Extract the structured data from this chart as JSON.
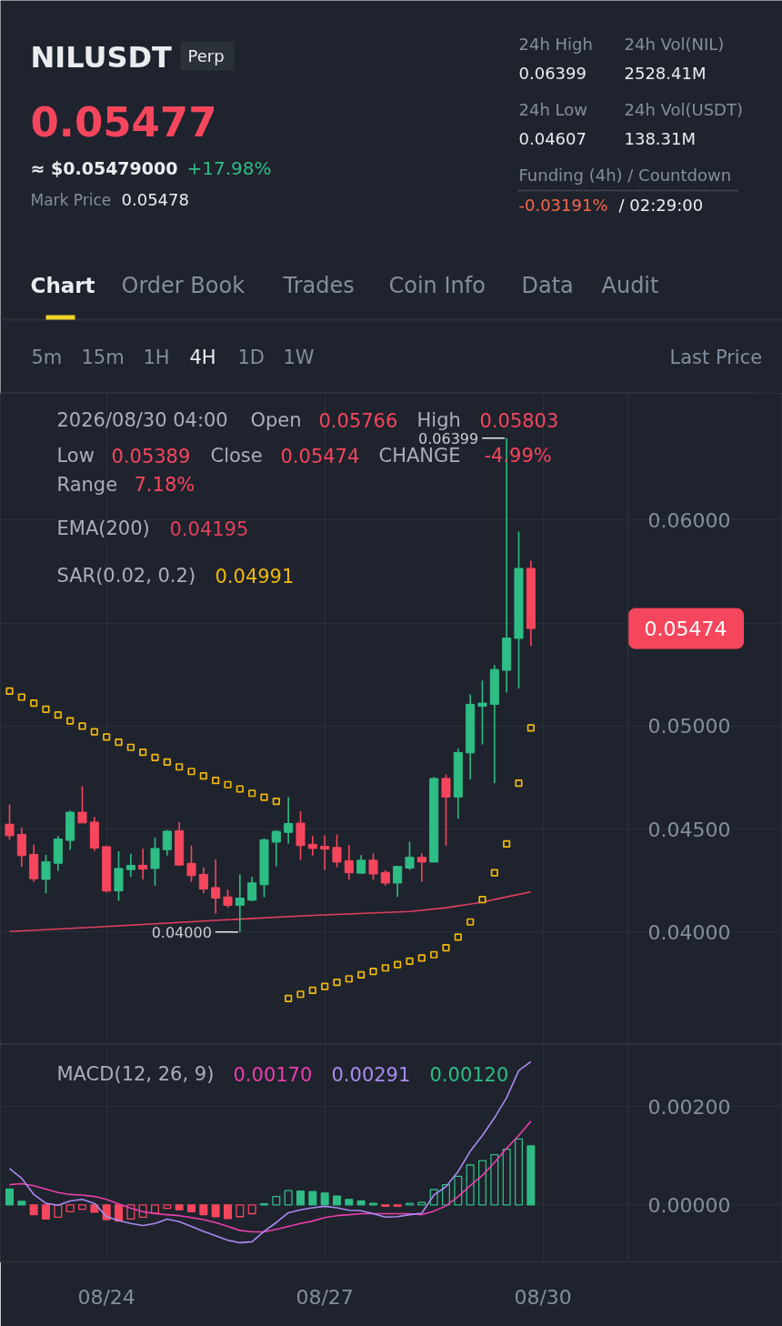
{
  "chart_data": [
    {
      "type": "other",
      "title": "NILUSDT",
      "annotations": [
        "Perp",
        "0.05477",
        "≈ $0.05479000",
        "+17.98%",
        "Mark Price",
        "0.05478",
        "24h High",
        "0.06399",
        "24h Vol(NIL)",
        "2528.41M",
        "24h Low",
        "0.04607",
        "24h Vol(USDT)",
        "138.31M",
        "Funding (4h) / Countdown",
        "-0.03191%",
        "/ 02:29:00",
        "Chart",
        "Order Book",
        "Trades",
        "Coin Info",
        "Data",
        "Audit",
        "5m",
        "15m",
        "1H",
        "4H",
        "1D",
        "1W",
        "Last Price"
      ]
    },
    {
      "type": "candlestick",
      "x": [
        "2026-08-22T16:00",
        "2026-08-22T20:00",
        "2026-08-23T00:00",
        "2026-08-23T04:00",
        "2026-08-23T08:00",
        "2026-08-23T12:00",
        "2026-08-23T16:00",
        "2026-08-23T20:00",
        "2026-08-24T00:00",
        "2026-08-24T04:00",
        "2026-08-24T08:00",
        "2026-08-24T12:00",
        "2026-08-24T16:00",
        "2026-08-24T20:00",
        "2026-08-25T00:00",
        "2026-08-25T04:00",
        "2026-08-25T08:00",
        "2026-08-25T12:00",
        "2026-08-25T16:00",
        "2026-08-25T20:00",
        "2026-08-26T00:00",
        "2026-08-26T04:00",
        "2026-08-26T08:00",
        "2026-08-26T12:00",
        "2026-08-26T16:00",
        "2026-08-26T20:00",
        "2026-08-27T00:00",
        "2026-08-27T04:00",
        "2026-08-27T08:00",
        "2026-08-27T12:00",
        "2026-08-27T16:00",
        "2026-08-27T20:00",
        "2026-08-28T00:00",
        "2026-08-28T04:00",
        "2026-08-28T08:00",
        "2026-08-28T12:00",
        "2026-08-28T16:00",
        "2026-08-28T20:00",
        "2026-08-29T00:00",
        "2026-08-29T04:00",
        "2026-08-29T08:00",
        "2026-08-29T12:00",
        "2026-08-29T16:00",
        "2026-08-29T20:00"
      ],
      "ohlc": [
        [
          0.04524,
          0.0462,
          0.04449,
          0.04468
        ],
        [
          0.04474,
          0.04508,
          0.04317,
          0.04371
        ],
        [
          0.04377,
          0.04424,
          0.04243,
          0.04259
        ],
        [
          0.04256,
          0.04375,
          0.04188,
          0.04342
        ],
        [
          0.04334,
          0.04468,
          0.04296,
          0.04452
        ],
        [
          0.04445,
          0.0459,
          0.04399,
          0.04582
        ],
        [
          0.04582,
          0.04708,
          0.0453,
          0.0453
        ],
        [
          0.04534,
          0.04559,
          0.04393,
          0.04408
        ],
        [
          0.04415,
          0.04415,
          0.04193,
          0.04199
        ],
        [
          0.042,
          0.04392,
          0.04152,
          0.04309
        ],
        [
          0.04303,
          0.0438,
          0.04268,
          0.04324
        ],
        [
          0.04324,
          0.04405,
          0.04255,
          0.04306
        ],
        [
          0.04309,
          0.04459,
          0.04225,
          0.04406
        ],
        [
          0.044,
          0.04496,
          0.04372,
          0.0449
        ],
        [
          0.04492,
          0.04534,
          0.04325,
          0.04325
        ],
        [
          0.04334,
          0.0442,
          0.04243,
          0.04274
        ],
        [
          0.0428,
          0.04314,
          0.04188,
          0.04209
        ],
        [
          0.04216,
          0.04353,
          0.0409,
          0.04165
        ],
        [
          0.04171,
          0.04206,
          0.04119,
          0.0413
        ],
        [
          0.0413,
          0.0428,
          0.04,
          0.04165
        ],
        [
          0.04155,
          0.04269,
          0.04149,
          0.04239
        ],
        [
          0.0423,
          0.04456,
          0.04169,
          0.04448
        ],
        [
          0.04437,
          0.04495,
          0.04318,
          0.04489
        ],
        [
          0.04484,
          0.04655,
          0.0443,
          0.04527
        ],
        [
          0.04529,
          0.04587,
          0.0435,
          0.0442
        ],
        [
          0.04426,
          0.04467,
          0.04371,
          0.04406
        ],
        [
          0.04416,
          0.0447,
          0.04301,
          0.04403
        ],
        [
          0.04411,
          0.04474,
          0.04315,
          0.0434
        ],
        [
          0.04347,
          0.04422,
          0.04254,
          0.04288
        ],
        [
          0.04286,
          0.04374,
          0.04282,
          0.04349
        ],
        [
          0.04349,
          0.04382,
          0.04254,
          0.04282
        ],
        [
          0.0429,
          0.04301,
          0.04225,
          0.04238
        ],
        [
          0.04238,
          0.04321,
          0.04171,
          0.04319
        ],
        [
          0.04311,
          0.04439,
          0.04301,
          0.04363
        ],
        [
          0.04363,
          0.04382,
          0.04244,
          0.0434
        ],
        [
          0.0434,
          0.04752,
          0.0434,
          0.04746
        ],
        [
          0.04746,
          0.04765,
          0.0442,
          0.04656
        ],
        [
          0.04656,
          0.0489,
          0.04551,
          0.04872
        ],
        [
          0.0487,
          0.05154,
          0.04742,
          0.05106
        ],
        [
          0.05096,
          0.05221,
          0.04911,
          0.05112
        ],
        [
          0.05106,
          0.05297,
          0.04723,
          0.05275
        ],
        [
          0.05271,
          0.06399,
          0.05163,
          0.05428
        ],
        [
          0.05426,
          0.05945,
          0.05183,
          0.05766
        ],
        [
          0.05766,
          0.05803,
          0.05389,
          0.05474
        ]
      ],
      "colors": [
        "#f6465d",
        "#f6465d",
        "#f6465d",
        "#2ebd85",
        "#2ebd85",
        "#2ebd85",
        "#f6465d",
        "#f6465d",
        "#f6465d",
        "#2ebd85",
        "#2ebd85",
        "#f6465d",
        "#2ebd85",
        "#2ebd85",
        "#f6465d",
        "#f6465d",
        "#f6465d",
        "#f6465d",
        "#f6465d",
        "#2ebd85",
        "#2ebd85",
        "#2ebd85",
        "#2ebd85",
        "#2ebd85",
        "#f6465d",
        "#f6465d",
        "#f6465d",
        "#f6465d",
        "#f6465d",
        "#2ebd85",
        "#f6465d",
        "#f6465d",
        "#2ebd85",
        "#2ebd85",
        "#f6465d",
        "#2ebd85",
        "#f6465d",
        "#2ebd85",
        "#2ebd85",
        "#2ebd85",
        "#2ebd85",
        "#2ebd85",
        "#2ebd85",
        "#f6465d"
      ],
      "series": [
        {
          "type": "line",
          "color": "#e0405e",
          "x": [
            "2026-08-22T16:00",
            "2026-08-24T00:00",
            "2026-08-25T12:00",
            "2026-08-26T20:00",
            "2026-08-28T04:00",
            "2026-08-28T16:00",
            "2026-08-29T04:00",
            "2026-08-29T12:00",
            "2026-08-29T20:00"
          ],
          "values": [
            0.04003,
            0.04027,
            0.04057,
            0.04081,
            0.041,
            0.04118,
            0.04145,
            0.04171,
            0.04195
          ]
        },
        {
          "type": "scatter",
          "color": "#f0b90b",
          "marker": "square",
          "values": [
            0.0517,
            0.05141,
            0.05112,
            0.05082,
            0.05054,
            0.05026,
            0.05,
            0.04973,
            0.04947,
            0.04922,
            0.04897,
            0.04873,
            0.04848,
            0.04826,
            0.04802,
            0.0478,
            0.04758,
            0.04736,
            0.04716,
            0.04695,
            0.04674,
            0.04655,
            0.04635,
            0.03678,
            0.03698,
            0.03717,
            0.03736,
            0.03756,
            0.03773,
            0.03792,
            0.03809,
            0.03826,
            0.03842,
            0.03859,
            0.03874,
            0.0389,
            0.03924,
            0.03976,
            0.04049,
            0.04158,
            0.04288,
            0.04428,
            0.04723,
            0.04991
          ]
        }
      ],
      "xlim": [
        "2026-08-22T13:00",
        "2026-09-02T07:00"
      ],
      "ylim": [
        0.03454,
        0.06616
      ],
      "xticks": [
        {
          "value": "2026-08-24",
          "label": null
        },
        {
          "value": "2026-08-27",
          "label": null
        },
        {
          "value": "2026-08-30",
          "label": null
        }
      ],
      "yticks": [
        {
          "value": 0.04,
          "label": "0.04000"
        },
        {
          "value": 0.045,
          "label": "0.04500"
        },
        {
          "value": 0.05,
          "label": "0.05000"
        },
        {
          "value": 0.055,
          "label": null
        },
        {
          "value": 0.06,
          "label": "0.06000"
        }
      ],
      "tick_labels": "y",
      "grid": true,
      "annotations": [
        "2026/08/30 04:00",
        "Open",
        "0.05766",
        "High",
        "0.05803",
        "Low",
        "0.05389",
        "Close",
        "0.05474",
        "CHANGE",
        "-4.99%",
        "Range",
        "7.18%",
        "EMA(200)",
        "0.04195",
        "SAR(0.02, 0.2)",
        "0.04991",
        "0.05474",
        {
          "text": "0.06399",
          "x": "2026-08-29T12:00",
          "y": 0.06399
        },
        {
          "text": "0.04000",
          "x": "2026-08-25T20:00",
          "y": 0.04
        }
      ]
    },
    {
      "type": "line",
      "title": "MACD(12, 26, 9)",
      "x": [
        "2026-08-22T16:00",
        "2026-08-22T20:00",
        "2026-08-23T00:00",
        "2026-08-23T04:00",
        "2026-08-23T08:00",
        "2026-08-23T12:00",
        "2026-08-23T16:00",
        "2026-08-23T20:00",
        "2026-08-24T00:00",
        "2026-08-24T04:00",
        "2026-08-24T08:00",
        "2026-08-24T12:00",
        "2026-08-24T16:00",
        "2026-08-24T20:00",
        "2026-08-25T00:00",
        "2026-08-25T04:00",
        "2026-08-25T08:00",
        "2026-08-25T12:00",
        "2026-08-25T16:00",
        "2026-08-25T20:00",
        "2026-08-26T00:00",
        "2026-08-26T04:00",
        "2026-08-26T08:00",
        "2026-08-26T12:00",
        "2026-08-26T16:00",
        "2026-08-26T20:00",
        "2026-08-27T00:00",
        "2026-08-27T04:00",
        "2026-08-27T08:00",
        "2026-08-27T12:00",
        "2026-08-27T16:00",
        "2026-08-27T20:00",
        "2026-08-28T00:00",
        "2026-08-28T04:00",
        "2026-08-28T08:00",
        "2026-08-28T12:00",
        "2026-08-28T16:00",
        "2026-08-28T20:00",
        "2026-08-29T00:00",
        "2026-08-29T04:00",
        "2026-08-29T08:00",
        "2026-08-29T12:00",
        "2026-08-29T16:00",
        "2026-08-29T20:00"
      ],
      "series": [
        {
          "type": "line",
          "color": "#e93fae",
          "values": [
            0.00041,
            0.00043,
            0.00039,
            0.00032,
            0.00025,
            0.00021,
            0.0002,
            0.00017,
            0.00011,
            2e-05,
            -7e-05,
            -0.00014,
            -0.00018,
            -0.0002,
            -0.00022,
            -0.00026,
            -0.0003,
            -0.00036,
            -0.00044,
            -0.00052,
            -0.00055,
            -0.00055,
            -0.0005,
            -0.00044,
            -0.00038,
            -0.00033,
            -0.00026,
            -0.00022,
            -0.0002,
            -0.00018,
            -0.00018,
            -0.00018,
            -0.00018,
            -0.00018,
            -0.0002,
            -0.00013,
            -2e-05,
            0.00017,
            0.00039,
            0.0006,
            0.00086,
            0.00115,
            0.00141,
            0.0017
          ]
        },
        {
          "type": "line",
          "color": "#a98bf0",
          "values": [
            0.00074,
            0.00054,
            0.00021,
            3e-05,
            -1e-05,
            8e-05,
            0.00011,
            3e-05,
            -0.00024,
            -0.00032,
            -0.00038,
            -0.00042,
            -0.00038,
            -0.00029,
            -0.00034,
            -0.00044,
            -0.00054,
            -0.00063,
            -0.00072,
            -0.00077,
            -0.00075,
            -0.00054,
            -0.00036,
            -0.00016,
            -0.0001,
            -6e-05,
            -3e-05,
            -6e-05,
            -0.00011,
            -0.00012,
            -0.00018,
            -0.00025,
            -0.00024,
            -0.0002,
            -0.00017,
            0.0002,
            0.00037,
            0.00068,
            0.00109,
            0.00141,
            0.00177,
            0.00218,
            0.00273,
            0.00291
          ]
        },
        {
          "type": "bar",
          "color": "#2ebd85",
          "values": [
            0.00032,
            7e-05,
            -0.0002,
            -0.00029,
            -0.00025,
            -0.00014,
            -9e-05,
            -0.00015,
            -0.0003,
            -0.00033,
            -0.00029,
            -0.00025,
            -0.00017,
            -7e-05,
            -0.0001,
            -0.00014,
            -0.0002,
            -0.00024,
            -0.00028,
            -0.00024,
            -0.00018,
            2e-05,
            0.00017,
            0.00029,
            0.00028,
            0.00027,
            0.00024,
            0.00018,
            0.00011,
            8e-05,
            3e-05,
            -3e-05,
            -3e-05,
            3e-05,
            5e-05,
            0.00031,
            0.00041,
            0.00058,
            0.00081,
            0.0009,
            0.00102,
            0.00113,
            0.00134,
            0.0012
          ],
          "colors": [
            "#2ebd85",
            "#2ebd85",
            "#f6465d",
            "#f6465d",
            "#f6465d",
            "#f6465d",
            "#f6465d",
            "#f6465d",
            "#f6465d",
            "#f6465d",
            "#f6465d",
            "#f6465d",
            "#f6465d",
            "#f6465d",
            "#f6465d",
            "#f6465d",
            "#f6465d",
            "#f6465d",
            "#f6465d",
            "#f6465d",
            "#f6465d",
            "#2ebd85",
            "#2ebd85",
            "#2ebd85",
            "#2ebd85",
            "#2ebd85",
            "#2ebd85",
            "#2ebd85",
            "#2ebd85",
            "#2ebd85",
            "#2ebd85",
            "#f6465d",
            "#f6465d",
            "#2ebd85",
            "#2ebd85",
            "#2ebd85",
            "#2ebd85",
            "#2ebd85",
            "#2ebd85",
            "#2ebd85",
            "#2ebd85",
            "#2ebd85",
            "#2ebd85",
            "#2ebd85"
          ]
        }
      ],
      "xlim": [
        "2026-08-22T13:00",
        "2026-09-02T07:00"
      ],
      "ylim": [
        -0.00116,
        0.00326
      ],
      "xticks": [
        {
          "value": "2026-08-24",
          "label": "08/24"
        },
        {
          "value": "2026-08-27",
          "label": "08/27"
        },
        {
          "value": "2026-08-30",
          "label": "08/30"
        }
      ],
      "yticks": [
        {
          "value": 0,
          "label": "0.00000"
        },
        {
          "value": 0.002,
          "label": "0.00200"
        }
      ],
      "grid": true,
      "annotations": [
        "0.00170",
        "0.00291",
        "0.00120"
      ]
    }
  ]
}
